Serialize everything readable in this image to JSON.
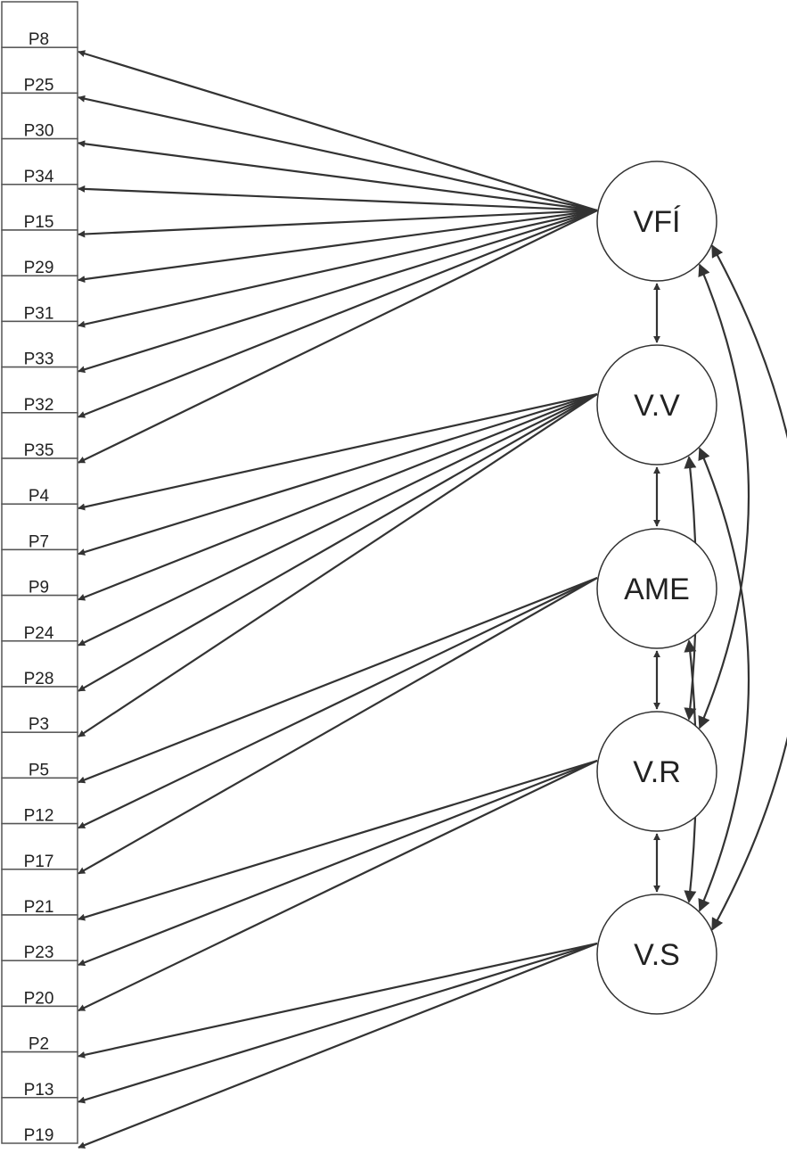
{
  "items": [
    "P8",
    "P25",
    "P30",
    "P34",
    "P15",
    "P29",
    "P31",
    "P33",
    "P32",
    "P35",
    "P4",
    "P7",
    "P9",
    "P24",
    "P28",
    "P3",
    "P5",
    "P12",
    "P17",
    "P21",
    "P23",
    "P20",
    "P2",
    "P13",
    "P19"
  ],
  "factors": [
    {
      "id": "vfi",
      "label": "VFÍ",
      "items": [
        "P8",
        "P25",
        "P30",
        "P34",
        "P15",
        "P29",
        "P31",
        "P33",
        "P32",
        "P35"
      ]
    },
    {
      "id": "vv",
      "label": "V.V",
      "items": [
        "P4",
        "P7",
        "P9",
        "P24",
        "P28",
        "P3"
      ]
    },
    {
      "id": "ame",
      "label": "AME",
      "items": [
        "P5",
        "P12",
        "P17"
      ]
    },
    {
      "id": "vr",
      "label": "V.R",
      "items": [
        "P21",
        "P23",
        "P20"
      ]
    },
    {
      "id": "vs",
      "label": "V.S",
      "items": [
        "P2",
        "P13",
        "P19"
      ]
    }
  ],
  "covariances": [
    [
      "VFÍ",
      "V.V"
    ],
    [
      "V.V",
      "AME"
    ],
    [
      "AME",
      "V.R"
    ],
    [
      "V.R",
      "V.S"
    ],
    [
      "VFÍ",
      "V.R"
    ],
    [
      "VFÍ",
      "V.S"
    ],
    [
      "V.V",
      "V.R"
    ],
    [
      "V.V",
      "V.S"
    ],
    [
      "AME",
      "V.S"
    ]
  ],
  "colors": {
    "line": "#333333",
    "box_border": "#555555",
    "text": "#222222"
  }
}
